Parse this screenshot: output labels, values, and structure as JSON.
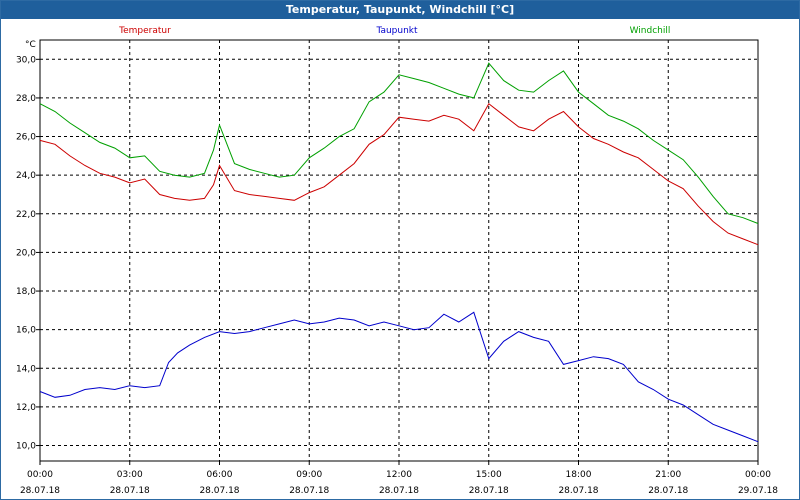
{
  "window": {
    "title": "Temperatur, Taupunkt, Windchill [°C]"
  },
  "colors": {
    "temperatur": "#cc0000",
    "taupunkt": "#0000cc",
    "windchill": "#00a000",
    "grid": "#000000"
  },
  "chart_data": {
    "type": "line",
    "title": "Temperatur, Taupunkt, Windchill [°C]",
    "ylabel": "°C",
    "ylim": [
      9.2,
      31.0
    ],
    "yticks": [
      "30,0",
      "28,0",
      "26,0",
      "24,0",
      "22,0",
      "20,0",
      "18,0",
      "16,0",
      "14,0",
      "12,0",
      "10,0"
    ],
    "ytick_values": [
      30,
      28,
      26,
      24,
      22,
      20,
      18,
      16,
      14,
      12,
      10
    ],
    "xlim": [
      0,
      24
    ],
    "xtick_hours": [
      0,
      3,
      6,
      9,
      12,
      15,
      18,
      21,
      24
    ],
    "xtick_times": [
      "00:00",
      "03:00",
      "06:00",
      "09:00",
      "12:00",
      "15:00",
      "18:00",
      "21:00",
      "00:00"
    ],
    "xtick_dates": [
      "28.07.18",
      "28.07.18",
      "28.07.18",
      "28.07.18",
      "28.07.18",
      "28.07.18",
      "28.07.18",
      "28.07.18",
      "29.07.18"
    ],
    "grid": true,
    "series": [
      {
        "name": "Temperatur",
        "color": "#cc0000",
        "x": [
          0,
          0.5,
          1,
          1.5,
          2,
          2.5,
          3,
          3.5,
          4,
          4.5,
          5,
          5.5,
          5.8,
          6,
          6.5,
          7,
          7.5,
          8,
          8.5,
          9,
          9.5,
          10,
          10.5,
          11,
          11.5,
          12,
          12.5,
          13,
          13.5,
          14,
          14.5,
          15,
          15.5,
          16,
          16.5,
          17,
          17.5,
          18,
          18.5,
          19,
          19.5,
          20,
          20.5,
          21,
          21.5,
          22,
          22.5,
          23,
          23.5,
          24
        ],
        "values": [
          25.8,
          25.6,
          25.0,
          24.5,
          24.1,
          23.9,
          23.6,
          23.8,
          23.0,
          22.8,
          22.7,
          22.8,
          23.5,
          24.5,
          23.2,
          23.0,
          22.9,
          22.8,
          22.7,
          23.1,
          23.4,
          24.0,
          24.6,
          25.6,
          26.1,
          27.0,
          26.9,
          26.8,
          27.1,
          26.9,
          26.3,
          27.7,
          27.1,
          26.5,
          26.3,
          26.9,
          27.3,
          26.5,
          25.9,
          25.6,
          25.2,
          24.9,
          24.3,
          23.7,
          23.3,
          22.4,
          21.6,
          21.0,
          20.7,
          20.4
        ]
      },
      {
        "name": "Taupunkt",
        "color": "#0000cc",
        "x": [
          0,
          0.5,
          1,
          1.5,
          2,
          2.5,
          3,
          3.5,
          4,
          4.3,
          4.6,
          5,
          5.5,
          6,
          6.5,
          7,
          7.5,
          8,
          8.5,
          9,
          9.5,
          10,
          10.5,
          11,
          11.5,
          12,
          12.5,
          13,
          13.5,
          14,
          14.5,
          15,
          15.5,
          16,
          16.5,
          17,
          17.5,
          18,
          18.5,
          19,
          19.5,
          20,
          20.5,
          21,
          21.5,
          22,
          22.5,
          23,
          23.5,
          24
        ],
        "values": [
          12.8,
          12.5,
          12.6,
          12.9,
          13.0,
          12.9,
          13.1,
          13.0,
          13.1,
          14.3,
          14.8,
          15.2,
          15.6,
          15.9,
          15.8,
          15.9,
          16.1,
          16.3,
          16.5,
          16.3,
          16.4,
          16.6,
          16.5,
          16.2,
          16.4,
          16.2,
          16.0,
          16.1,
          16.8,
          16.4,
          16.9,
          14.5,
          15.4,
          15.9,
          15.6,
          15.4,
          14.2,
          14.4,
          14.6,
          14.5,
          14.2,
          13.3,
          12.9,
          12.4,
          12.1,
          11.6,
          11.1,
          10.8,
          10.5,
          10.2
        ]
      },
      {
        "name": "Windchill",
        "color": "#00a000",
        "x": [
          0,
          0.5,
          1,
          1.5,
          2,
          2.5,
          3,
          3.5,
          4,
          4.5,
          5,
          5.5,
          5.8,
          6,
          6.5,
          7,
          7.5,
          8,
          8.5,
          9,
          9.5,
          10,
          10.5,
          11,
          11.5,
          12,
          12.5,
          13,
          13.5,
          14,
          14.5,
          15,
          15.5,
          16,
          16.5,
          17,
          17.5,
          18,
          18.5,
          19,
          19.5,
          20,
          20.5,
          21,
          21.5,
          22,
          22.5,
          23,
          23.5,
          24
        ],
        "values": [
          27.7,
          27.3,
          26.7,
          26.2,
          25.7,
          25.4,
          24.9,
          25.0,
          24.2,
          24.0,
          23.9,
          24.1,
          25.3,
          26.6,
          24.6,
          24.3,
          24.1,
          23.9,
          24.0,
          24.9,
          25.4,
          26.0,
          26.4,
          27.8,
          28.3,
          29.2,
          29.0,
          28.8,
          28.5,
          28.2,
          28.0,
          29.8,
          28.9,
          28.4,
          28.3,
          28.9,
          29.4,
          28.3,
          27.7,
          27.1,
          26.8,
          26.4,
          25.8,
          25.3,
          24.8,
          23.9,
          22.9,
          22.0,
          21.8,
          21.5
        ]
      }
    ]
  }
}
